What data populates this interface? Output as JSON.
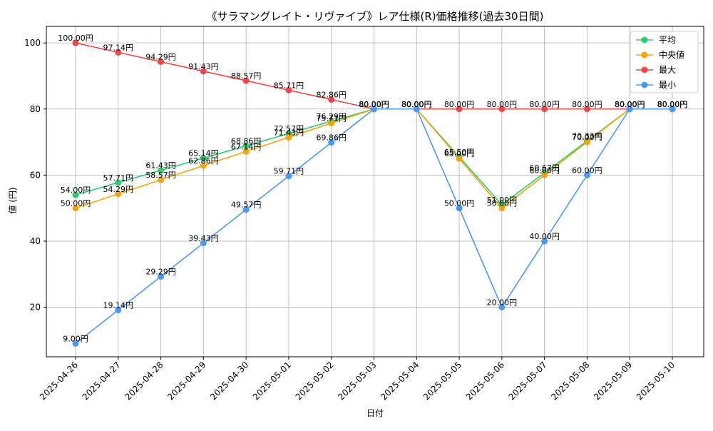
{
  "chart_data": {
    "type": "line",
    "title": "《サラマングレイト・リヴァイブ》レア仕様(R)価格推移(過去30日間)",
    "xlabel": "日付",
    "ylabel": "値 (円)",
    "ylim": [
      5,
      105
    ],
    "yticks": [
      20,
      40,
      60,
      80,
      100
    ],
    "grid": true,
    "legend_position": "top-right",
    "value_suffix": "円",
    "categories": [
      "2025-04-26",
      "2025-04-27",
      "2025-04-28",
      "2025-04-29",
      "2025-04-30",
      "2025-05-01",
      "2025-05-02",
      "2025-05-03",
      "2025-05-04",
      "2025-05-05",
      "2025-05-06",
      "2025-05-07",
      "2025-05-08",
      "2025-05-09",
      "2025-05-10"
    ],
    "series": [
      {
        "name": "平均",
        "color": "#2ecc71",
        "values": [
          54.0,
          57.71,
          61.43,
          65.14,
          68.86,
          72.57,
          76.29,
          80.0,
          80.0,
          65.5,
          51.0,
          60.67,
          70.33,
          80.0,
          80.0
        ]
      },
      {
        "name": "中央値",
        "color": "#f5a30a",
        "values": [
          50.0,
          54.29,
          58.57,
          62.86,
          67.14,
          71.43,
          75.71,
          80.0,
          80.0,
          65.0,
          50.0,
          60.0,
          70.0,
          80.0,
          80.0
        ]
      },
      {
        "name": "最大",
        "color": "#f04848",
        "values": [
          100.0,
          97.14,
          94.29,
          91.43,
          88.57,
          85.71,
          82.86,
          80.0,
          80.0,
          80.0,
          80.0,
          80.0,
          80.0,
          80.0,
          80.0
        ]
      },
      {
        "name": "最小",
        "color": "#4a9af5",
        "values": [
          9.0,
          19.14,
          29.29,
          39.43,
          49.57,
          59.71,
          69.86,
          80.0,
          80.0,
          50.0,
          20.0,
          40.0,
          60.0,
          80.0,
          80.0
        ]
      }
    ]
  }
}
